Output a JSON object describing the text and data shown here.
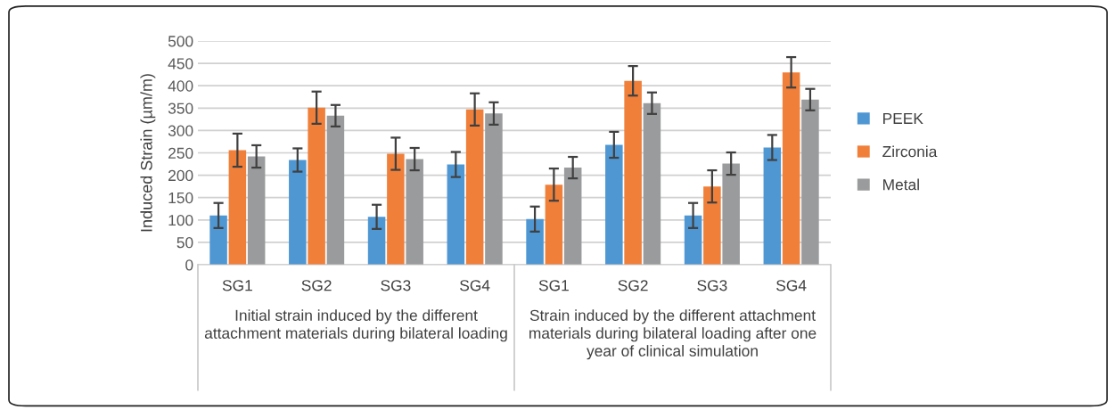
{
  "chart_data": {
    "type": "bar",
    "categories": [
      "SG1",
      "SG2",
      "SG3",
      "SG4",
      "SG1",
      "SG2",
      "SG3",
      "SG4"
    ],
    "ylabel": "Induced Strain (µm/m)",
    "series": [
      {
        "name": "PEEK",
        "color": "#4f97d3",
        "values": [
          110,
          234,
          107,
          224,
          102,
          268,
          110,
          262
        ],
        "errors": [
          28,
          26,
          27,
          28,
          28,
          29,
          28,
          28
        ]
      },
      {
        "name": "Zirconia",
        "color": "#f07f3a",
        "values": [
          256,
          351,
          248,
          347,
          179,
          411,
          175,
          430
        ],
        "errors": [
          37,
          36,
          36,
          36,
          36,
          33,
          36,
          34
        ]
      },
      {
        "name": "Metal",
        "color": "#9a9b9c",
        "values": [
          242,
          333,
          236,
          338,
          217,
          361,
          226,
          369
        ],
        "errors": [
          25,
          24,
          25,
          25,
          24,
          24,
          25,
          24
        ]
      }
    ],
    "annotations": [
      "Initial strain induced by the different attachment materials during bilateral loading",
      "Strain induced by the different attachment materials during bilateral loading after one year of clinical simulation"
    ],
    "ylim": [
      0,
      500
    ],
    "yticks": [
      0,
      50,
      100,
      150,
      200,
      250,
      300,
      350,
      400,
      450,
      500
    ],
    "grid": "y",
    "legend": "right"
  }
}
